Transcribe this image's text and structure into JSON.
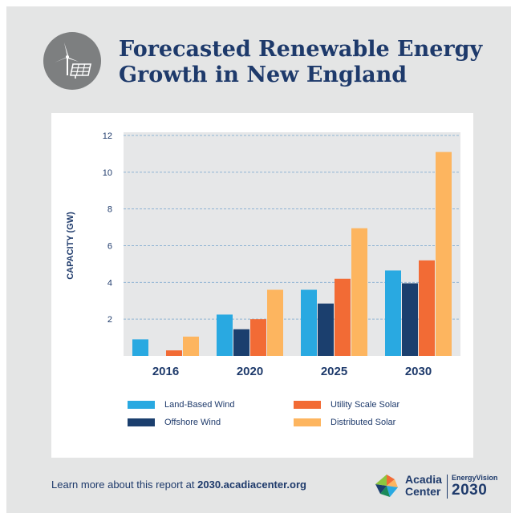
{
  "header": {
    "icon": "wind-turbine-solar-panel-icon",
    "title_line1": "Forecasted Renewable Energy",
    "title_line2": "Growth in New England"
  },
  "chart_data": {
    "type": "bar",
    "title": "Forecasted Renewable Energy Growth in New England",
    "xlabel": "",
    "ylabel": "CAPACITY (GW)",
    "ylim": [
      0,
      12
    ],
    "yticks": [
      "2",
      "4",
      "6",
      "8",
      "10",
      "12"
    ],
    "grid": true,
    "legend_position": "bottom",
    "categories": [
      "2016",
      "2020",
      "2025",
      "2030"
    ],
    "series": [
      {
        "name": "Land-Based Wind",
        "color": "#29a9e1",
        "values": [
          0.9,
          2.25,
          3.6,
          4.65
        ]
      },
      {
        "name": "Offshore Wind",
        "color": "#1b3f6e",
        "values": [
          0,
          1.45,
          2.85,
          3.95
        ]
      },
      {
        "name": "Utility Scale Solar",
        "color": "#f26b35",
        "values": [
          0.3,
          2.0,
          4.2,
          5.2
        ]
      },
      {
        "name": "Distributed Solar",
        "color": "#fdb55f",
        "values": [
          1.05,
          3.6,
          6.95,
          11.1
        ]
      }
    ]
  },
  "colors": {
    "page_bg": "#e4e5e5",
    "plot_bg": "#e6e7e8",
    "grid": "#8fb4d3",
    "navy": "#1e3a6b"
  },
  "footer": {
    "text": "Learn more about this report at",
    "link": "2030.acadiacenter.org"
  },
  "logo": {
    "icon": "acadia-pinwheel-icon",
    "org_line1": "Acadia",
    "org_line2": "Center",
    "brand": "EnergyVision",
    "year": "2030"
  }
}
